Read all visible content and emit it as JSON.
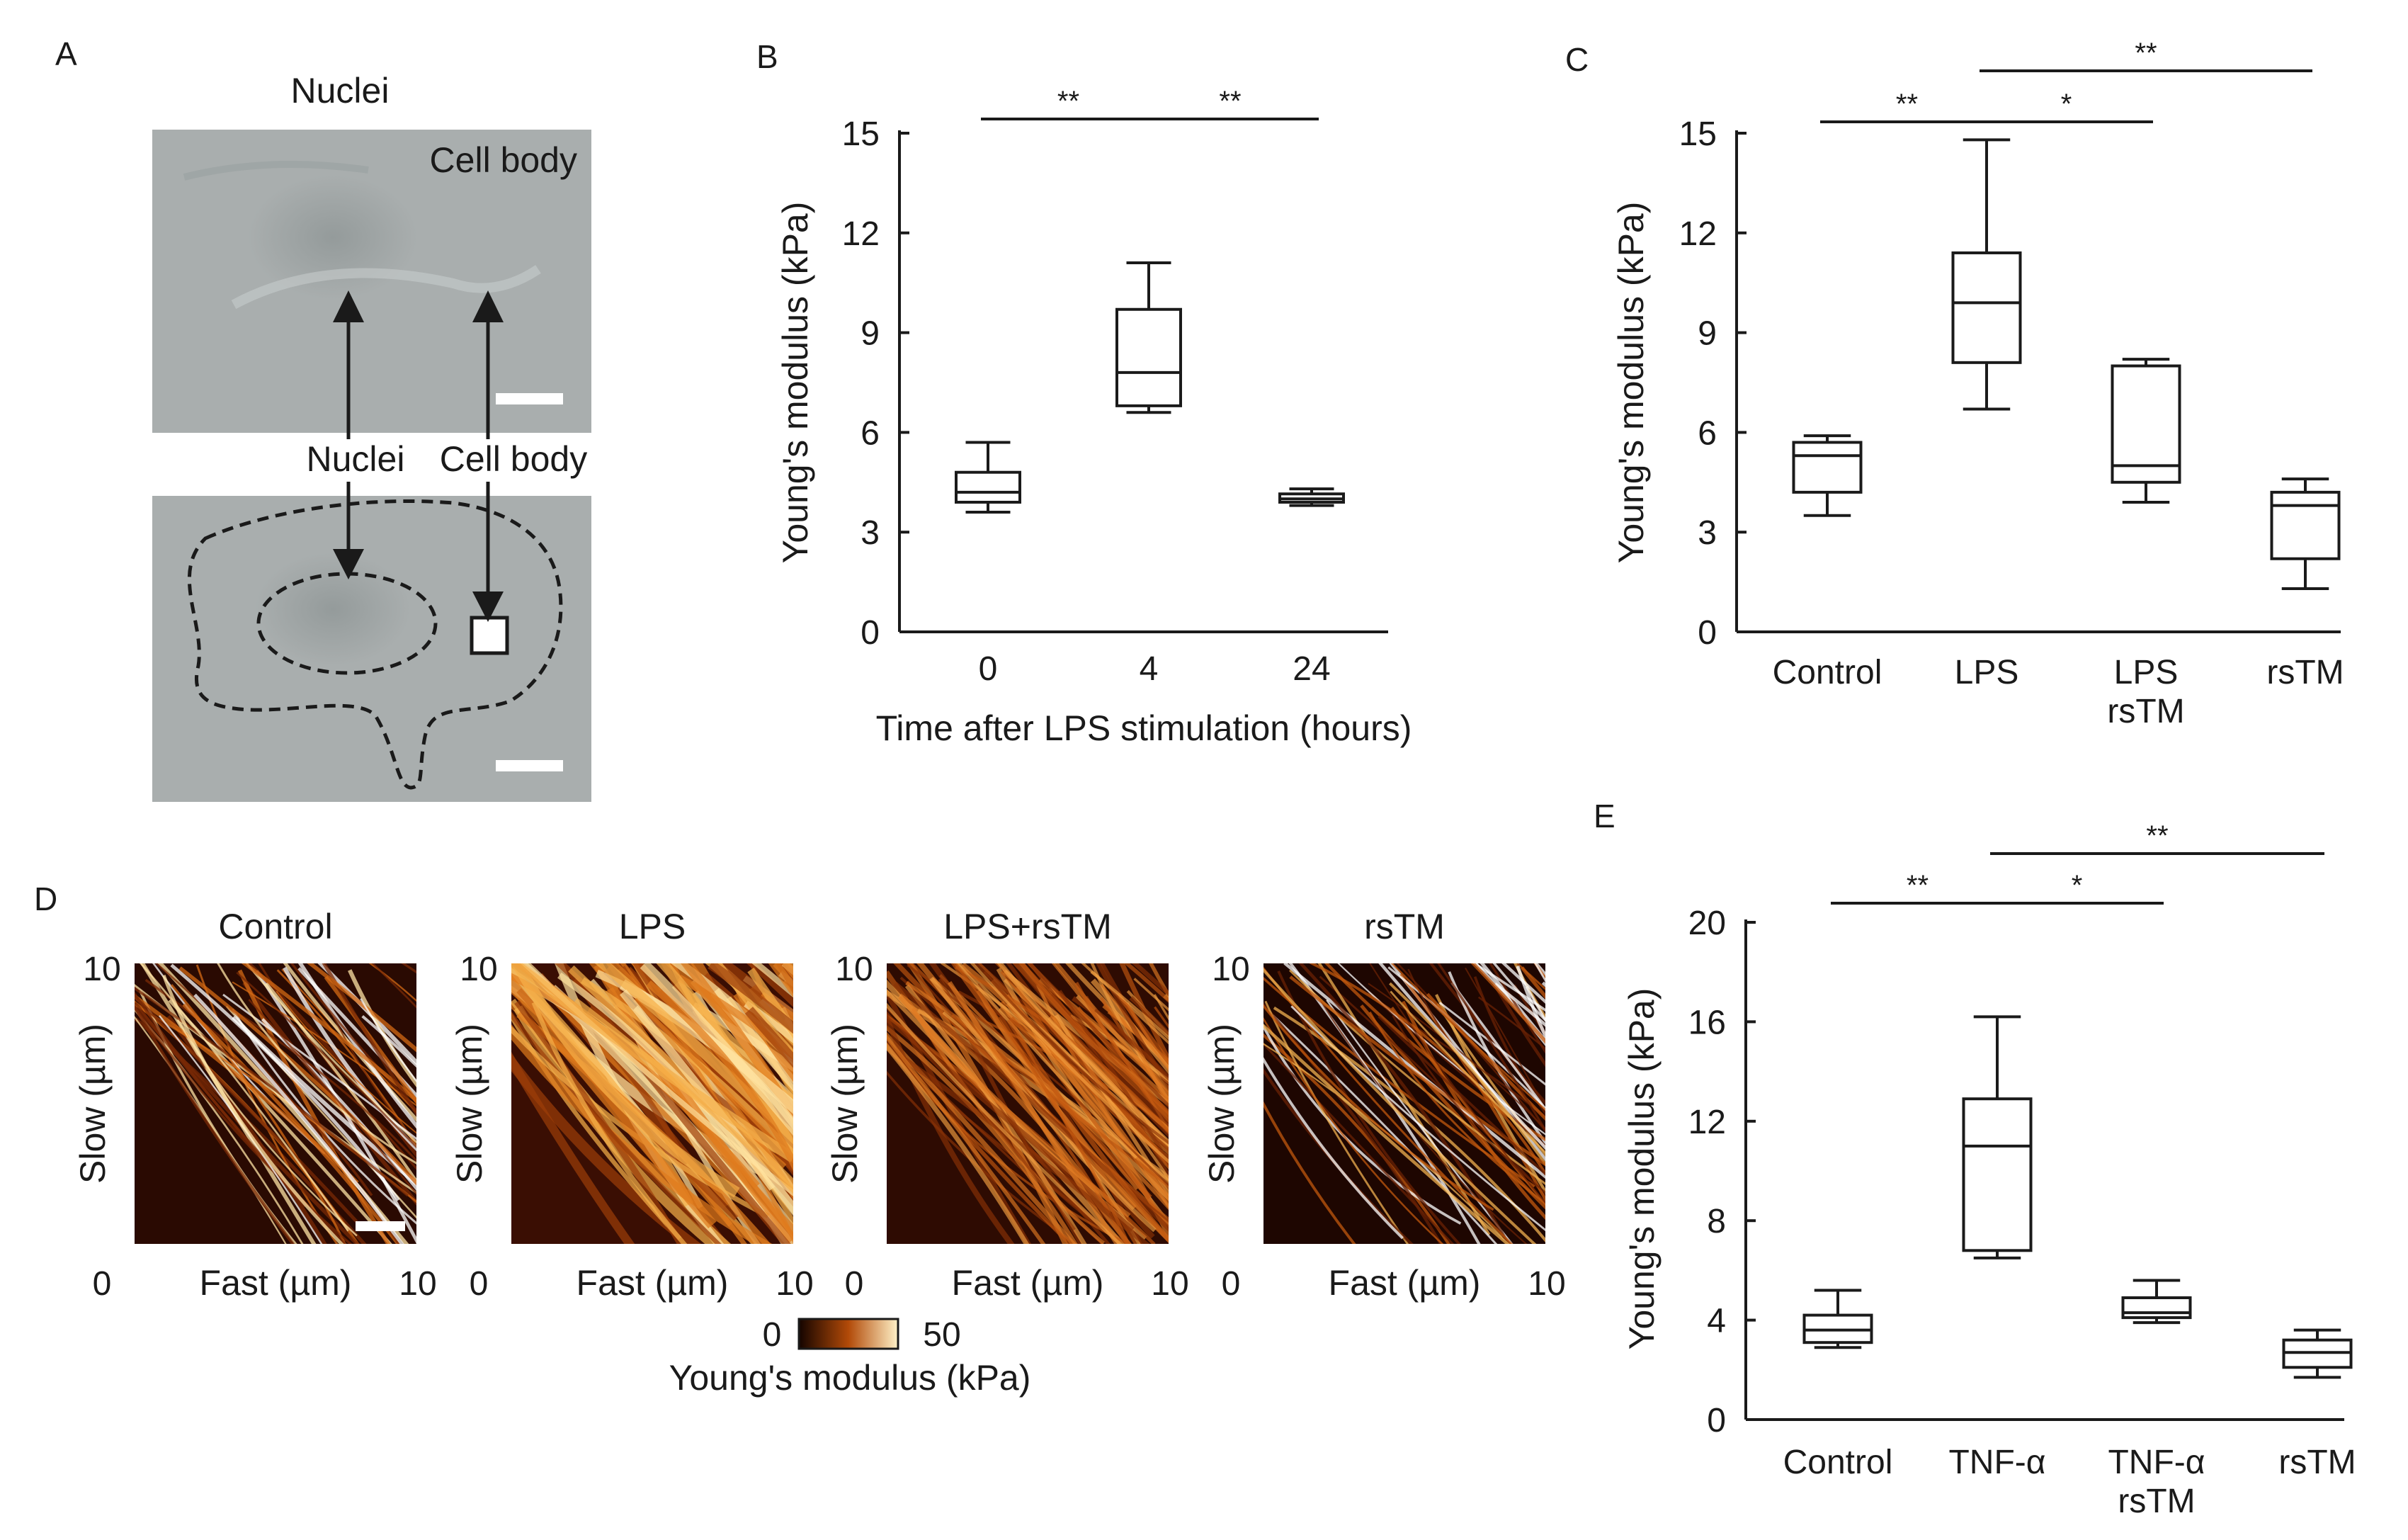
{
  "panel_labels": {
    "a": "A",
    "b": "B",
    "c": "C",
    "d": "D",
    "e": "E"
  },
  "colors": {
    "stroke": "#1a1a1a",
    "micrograph": "#a9aeae",
    "cmap_low": "#140400",
    "cmap_mid": "#b24a08",
    "cmap_high": "#fff2c8"
  },
  "panel_a": {
    "title": "Nuclei",
    "top_label": "Cell body",
    "mid_label_nuclei": "Nuclei",
    "mid_label_cell": "Cell body"
  },
  "chart_data": [
    {
      "id": "B",
      "type": "box",
      "ylabel": "Young's modulus (kPa)",
      "xlabel": "Time after LPS stimulation (hours)",
      "ylim": [
        0,
        15
      ],
      "yticks": [
        "0",
        "3",
        "6",
        "9",
        "12",
        "15"
      ],
      "categories": [
        "0",
        "4",
        "24"
      ],
      "boxes": [
        {
          "min": 3.6,
          "q1": 3.9,
          "median": 4.2,
          "q3": 4.8,
          "max": 5.7
        },
        {
          "min": 6.6,
          "q1": 6.8,
          "median": 7.8,
          "q3": 9.7,
          "max": 11.1
        },
        {
          "min": 3.8,
          "q1": 3.9,
          "median": 4.0,
          "q3": 4.15,
          "max": 4.3
        }
      ],
      "significance": [
        {
          "from": 0,
          "to": 1,
          "level": 0,
          "label": "**"
        },
        {
          "from": 1,
          "to": 2,
          "level": 0,
          "label": "**"
        }
      ]
    },
    {
      "id": "C",
      "type": "box",
      "ylabel": "Young's modulus (kPa)",
      "xlabel": "",
      "ylim": [
        0,
        15
      ],
      "yticks": [
        "0",
        "3",
        "6",
        "9",
        "12",
        "15"
      ],
      "categories": [
        [
          "Control"
        ],
        [
          "LPS"
        ],
        [
          "LPS",
          "rsTM"
        ],
        [
          "rsTM"
        ]
      ],
      "boxes": [
        {
          "min": 3.5,
          "q1": 4.2,
          "median": 5.3,
          "q3": 5.7,
          "max": 5.9
        },
        {
          "min": 6.7,
          "q1": 8.1,
          "median": 9.9,
          "q3": 11.4,
          "max": 14.8
        },
        {
          "min": 3.9,
          "q1": 4.5,
          "median": 5.0,
          "q3": 8.0,
          "max": 8.2
        },
        {
          "min": 1.3,
          "q1": 2.2,
          "median": 3.8,
          "q3": 4.2,
          "max": 4.6
        }
      ],
      "significance": [
        {
          "from": 0,
          "to": 1,
          "level": 0,
          "label": "**"
        },
        {
          "from": 1,
          "to": 2,
          "level": 0,
          "label": "*"
        },
        {
          "from": 1,
          "to": 3,
          "level": 1,
          "label": "**"
        }
      ]
    },
    {
      "id": "E",
      "type": "box",
      "ylabel": "Young's modulus (kPa)",
      "xlabel": "",
      "ylim": [
        0,
        20
      ],
      "yticks": [
        "0",
        "4",
        "8",
        "12",
        "16",
        "20"
      ],
      "categories": [
        [
          "Control"
        ],
        [
          "TNF-α"
        ],
        [
          "TNF-α",
          "rsTM"
        ],
        [
          "rsTM"
        ]
      ],
      "boxes": [
        {
          "min": 2.9,
          "q1": 3.1,
          "median": 3.6,
          "q3": 4.2,
          "max": 5.2
        },
        {
          "min": 6.5,
          "q1": 6.8,
          "median": 11.0,
          "q3": 12.9,
          "max": 16.2
        },
        {
          "min": 3.9,
          "q1": 4.1,
          "median": 4.3,
          "q3": 4.9,
          "max": 5.6
        },
        {
          "min": 1.7,
          "q1": 2.1,
          "median": 2.7,
          "q3": 3.2,
          "max": 3.6
        }
      ],
      "significance": [
        {
          "from": 0,
          "to": 1,
          "level": 0,
          "label": "**"
        },
        {
          "from": 1,
          "to": 2,
          "level": 0,
          "label": "*"
        },
        {
          "from": 1,
          "to": 3,
          "level": 1,
          "label": "**"
        }
      ]
    }
  ],
  "panel_d": {
    "maps": [
      {
        "title": "Control"
      },
      {
        "title": "LPS"
      },
      {
        "title": "LPS+rsTM"
      },
      {
        "title": "rsTM"
      }
    ],
    "ylabel": "Slow (µm)",
    "xlabel": "Fast (µm)",
    "y_top": "10",
    "x_start": "0",
    "x_end": "10",
    "colorbar": {
      "min": "0",
      "max": "50",
      "label": "Young's modulus (kPa)"
    }
  }
}
